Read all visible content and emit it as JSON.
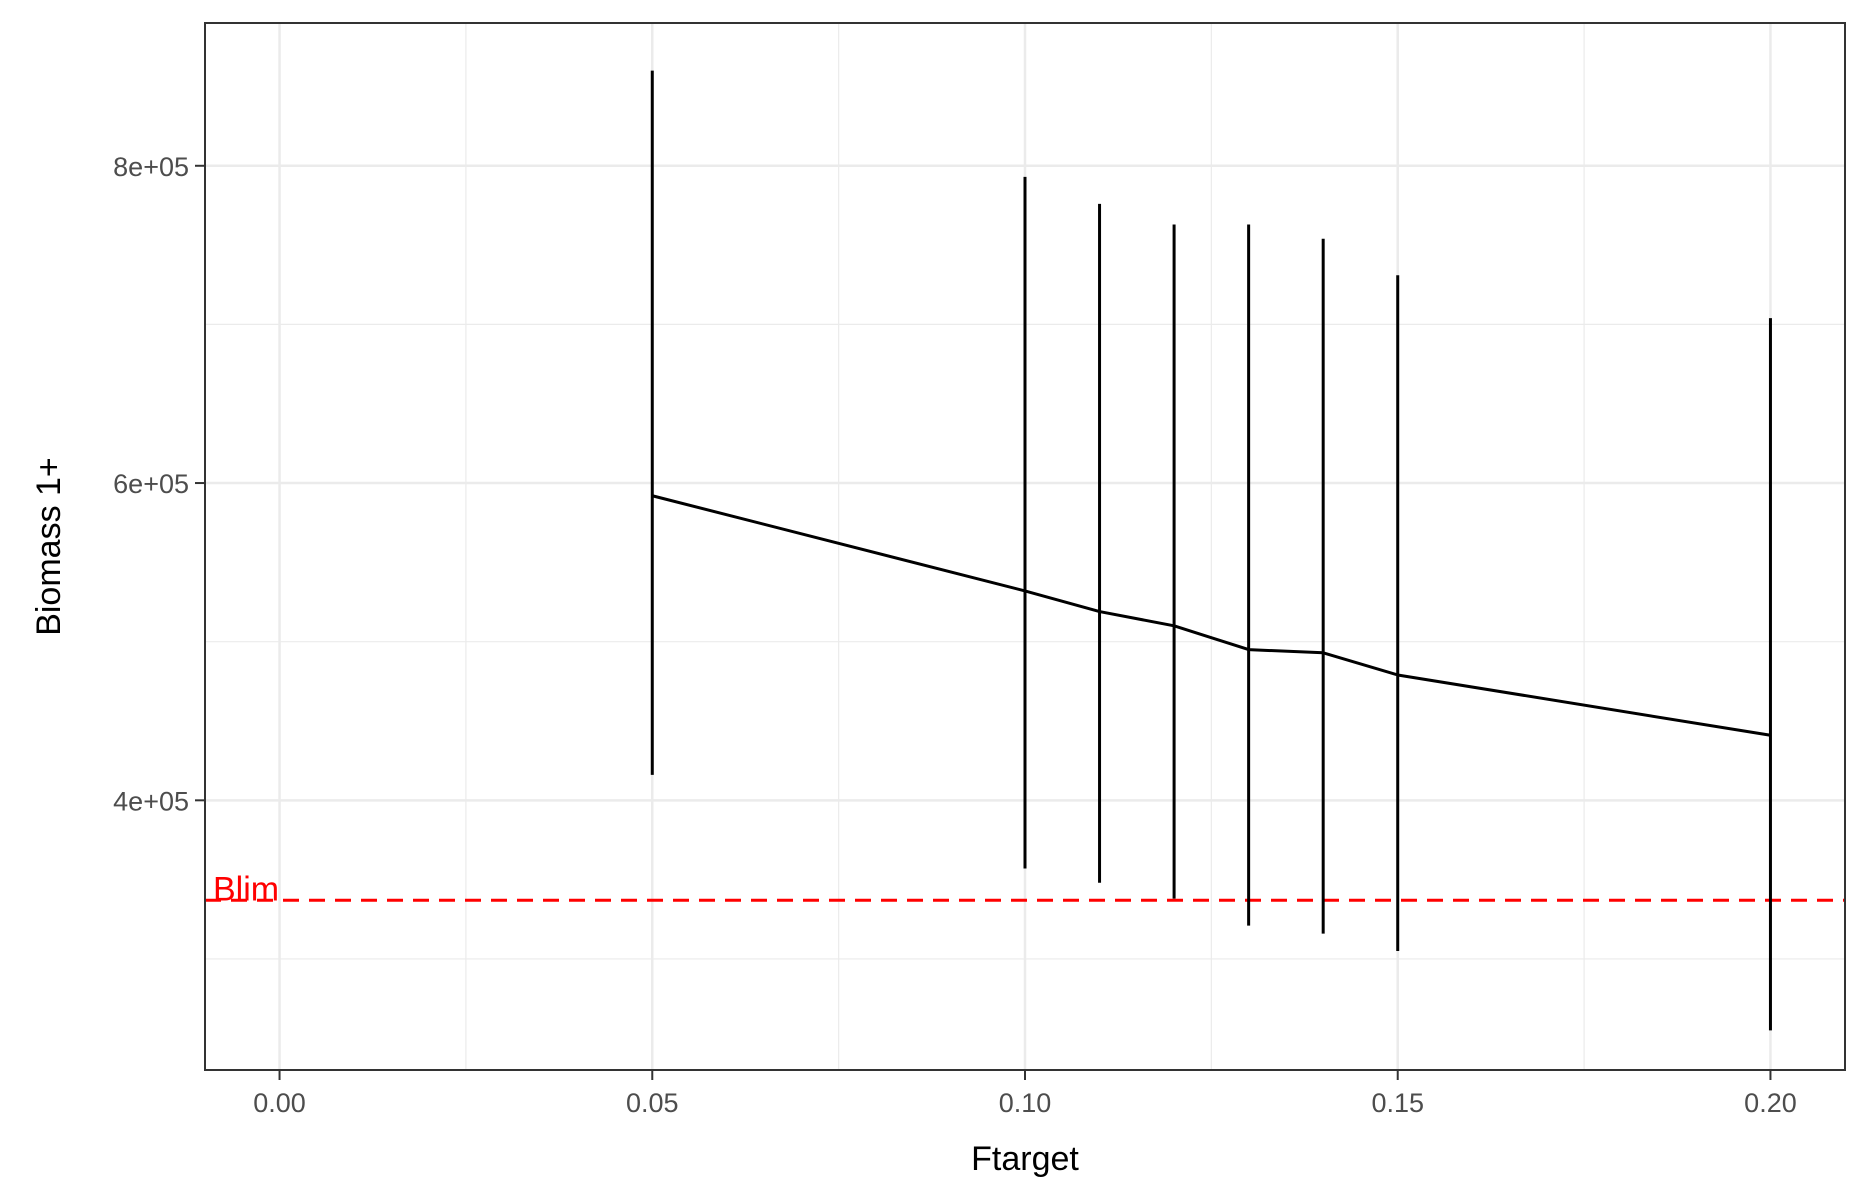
{
  "chart_data": {
    "type": "line",
    "title": "",
    "xlabel": "Ftarget",
    "ylabel": "Biomass 1+",
    "xlim": [
      -0.01,
      0.21
    ],
    "ylim": [
      230000,
      890000
    ],
    "x_ticks": [
      0.0,
      0.05,
      0.1,
      0.15,
      0.2
    ],
    "x_tick_labels": [
      "0.00",
      "0.05",
      "0.10",
      "0.15",
      "0.20"
    ],
    "y_ticks": [
      400000,
      600000,
      800000
    ],
    "y_tick_labels": [
      "4e+05",
      "6e+05",
      "8e+05"
    ],
    "grid": true,
    "series": [
      {
        "x": [
          0.05,
          0.1,
          0.11,
          0.12,
          0.13,
          0.14,
          0.15,
          0.2
        ],
        "median": [
          592000,
          532000,
          519000,
          510000,
          495000,
          493000,
          479000,
          441000
        ],
        "lower": [
          416000,
          357000,
          348000,
          338000,
          321000,
          316000,
          305000,
          255000
        ],
        "upper": [
          860000,
          793000,
          776000,
          763000,
          763000,
          754000,
          731000,
          704000
        ]
      }
    ],
    "reference_lines": [
      {
        "label": "Blim",
        "y": 337000,
        "color": "#ff0000",
        "style": "dashed"
      }
    ]
  }
}
